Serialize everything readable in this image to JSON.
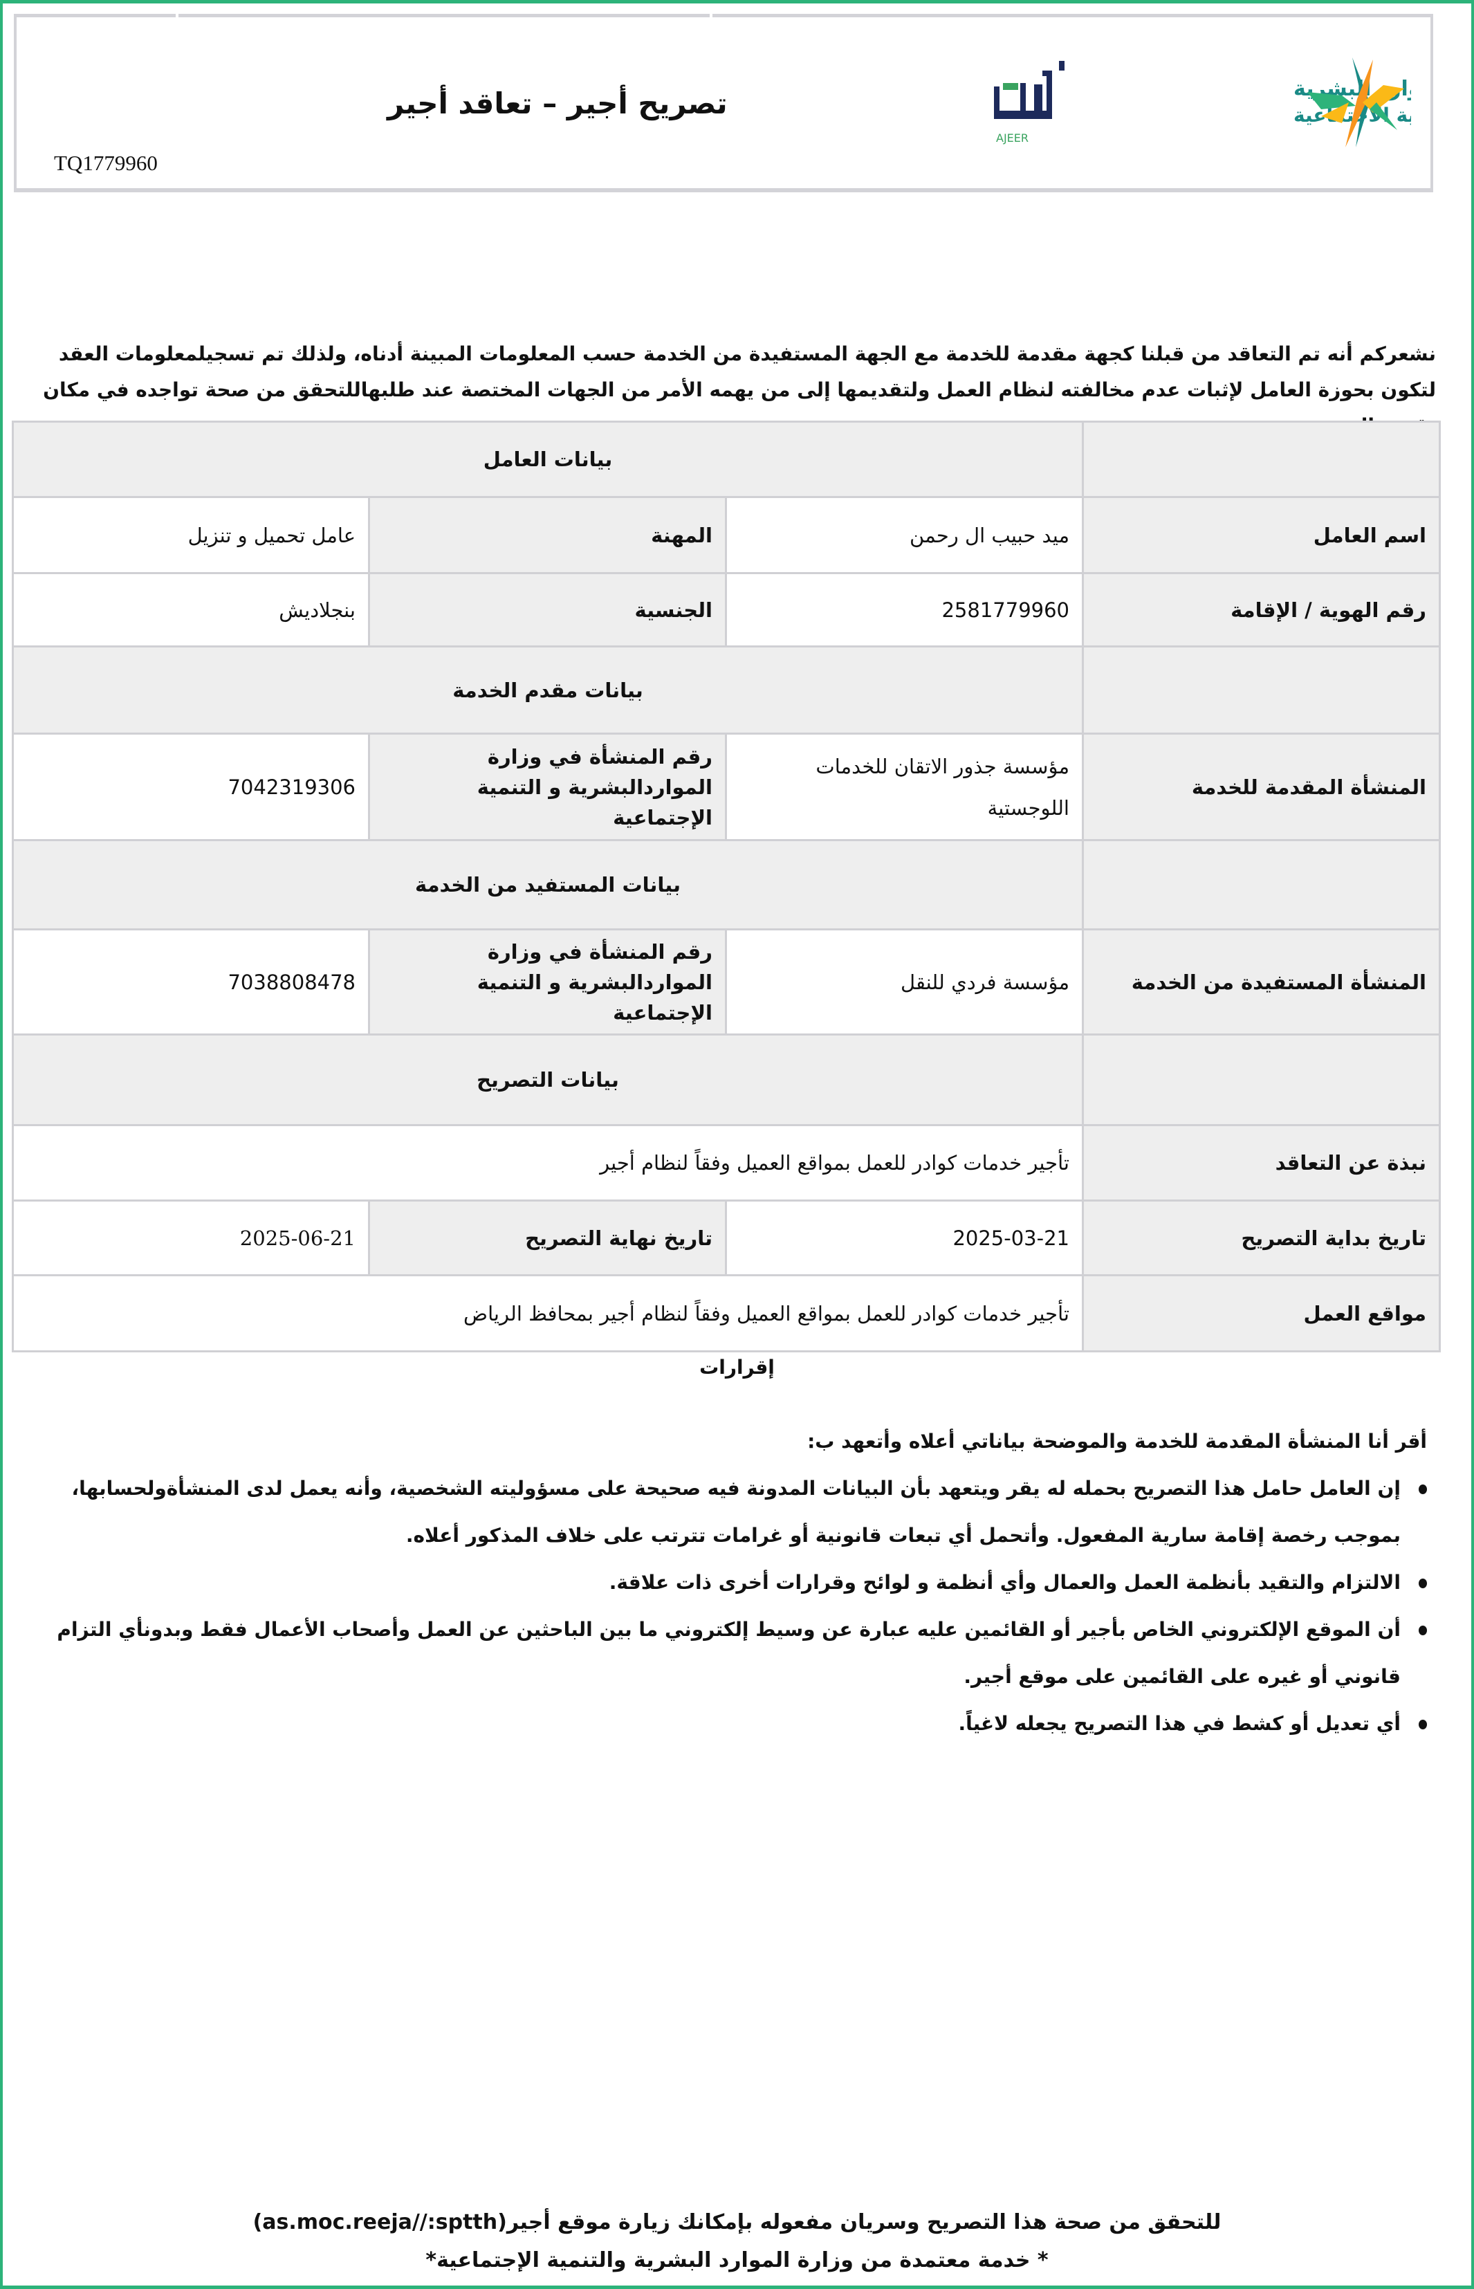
{
  "header": {
    "title": "تصريح أجير –  تعاقد أجير",
    "reference": "TQ1779960",
    "ajeer_logo_text": "أجير",
    "ajeer_logo_latin": "AJEER",
    "ministry_logo_text": "الموارد البشرية والتنمية الاجتماعية"
  },
  "intro": "نشعركم أنه تم التعاقد من قبلنا كجهة مقدمة للخدمة مع الجهة المستفيدة من الخدمة حسب المعلومات المبينة أدناه، ولذلك تم تسجيلمعلومات العقد لتكون بحوزة العامل لإثبات عدم مخالفته لنظام العمل ولتقديمها إلى من يهمه الأمر من الجهات المختصة عند طلبهاللتحقق من صحة تواجده في مكان تقديم الخدمة",
  "worker": {
    "section": "بيانات العامل",
    "name_label": "اسم العامل",
    "name": "ميد حبيب ال رحمن",
    "profession_label": "المهنة",
    "profession": "عامل تحميل و تنزيل",
    "id_label": "رقم الهوية / الإقامة",
    "id": "2581779960",
    "nationality_label": "الجنسية",
    "nationality": "بنجلاديش"
  },
  "provider": {
    "section": "بيانات مقدم الخدمة",
    "org_label": "المنشأة المقدمة للخدمة",
    "org": "مؤسسة جذور الاتقان للخدمات اللوجستية",
    "num_label": "رقم المنشأة في وزارة المواردالبشرية و التنمية الإجتماعية",
    "num": "7042319306"
  },
  "beneficiary": {
    "section": "بيانات المستفيد من الخدمة",
    "org_label": "المنشأة المستفيدة من الخدمة",
    "org": "مؤسسة فردي للنقل",
    "num_label": "رقم المنشأة في وزارة المواردالبشرية و التنمية الإجتماعية",
    "num": "7038808478"
  },
  "permit": {
    "section": "بيانات التصريح",
    "about_label": "نبذة عن التعاقد",
    "about": "تأجير خدمات كوادر للعمل بمواقع العميل وفقاً لنظام أجير",
    "start_label": "تاريخ بداية التصريح",
    "start": "2025-03-21",
    "end_label": "تاريخ نهاية التصريح",
    "end": "2025-06-21",
    "sites_label": "مواقع العمل",
    "sites": "تأجير خدمات كوادر للعمل بمواقع العميل وفقاً لنظام أجير بمحافظ الرياض"
  },
  "declarations": {
    "title": "إقرارات",
    "lead": "أقر أنا المنشأة المقدمة للخدمة والموضحة بياناتي أعلاه وأتعهد ب:",
    "items": [
      "إن العامل حامل هذا التصريح بحمله له يقر ويتعهد بأن البيانات المدونة فيه صحيحة على مسؤوليته الشخصية، وأنه يعمل لدى المنشأةولحسابها، بموجب رخصة إقامة سارية المفعول. وأتحمل أي تبعات قانونية أو غرامات تترتب على خلاف المذكور أعلاه.",
      "الالتزام والتقيد بأنظمة العمل والعمال وأي أنظمة و لوائح وقرارات أخرى ذات علاقة.",
      "أن الموقع الإلكتروني الخاص بأجير أو القائمين عليه عبارة عن وسيط إلكتروني ما بين الباحثين عن العمل وأصحاب الأعمال فقط وبدونأي التزام قانوني أو غيره على القائمين على موقع أجير.",
      "أي تعديل أو كشط في هذا التصريح يجعله لاغياً."
    ]
  },
  "footer": {
    "verify": "للتحقق من صحة هذا التصريح وسريان مفعوله بإمكانك زيارة موقع أجير(as.moc.reeja//:sptth)",
    "approved": "* خدمة معتمدة من وزارة الموارد البشرية والتنمية الإجتماعية*"
  },
  "colors": {
    "border_green": "#2db37a",
    "ajeer_navy": "#1d2a5b",
    "ajeer_green": "#3aa35f",
    "ministry_teal": "#1a8a86",
    "ministry_orange": "#f7941d",
    "ministry_yellow": "#fbb917"
  }
}
